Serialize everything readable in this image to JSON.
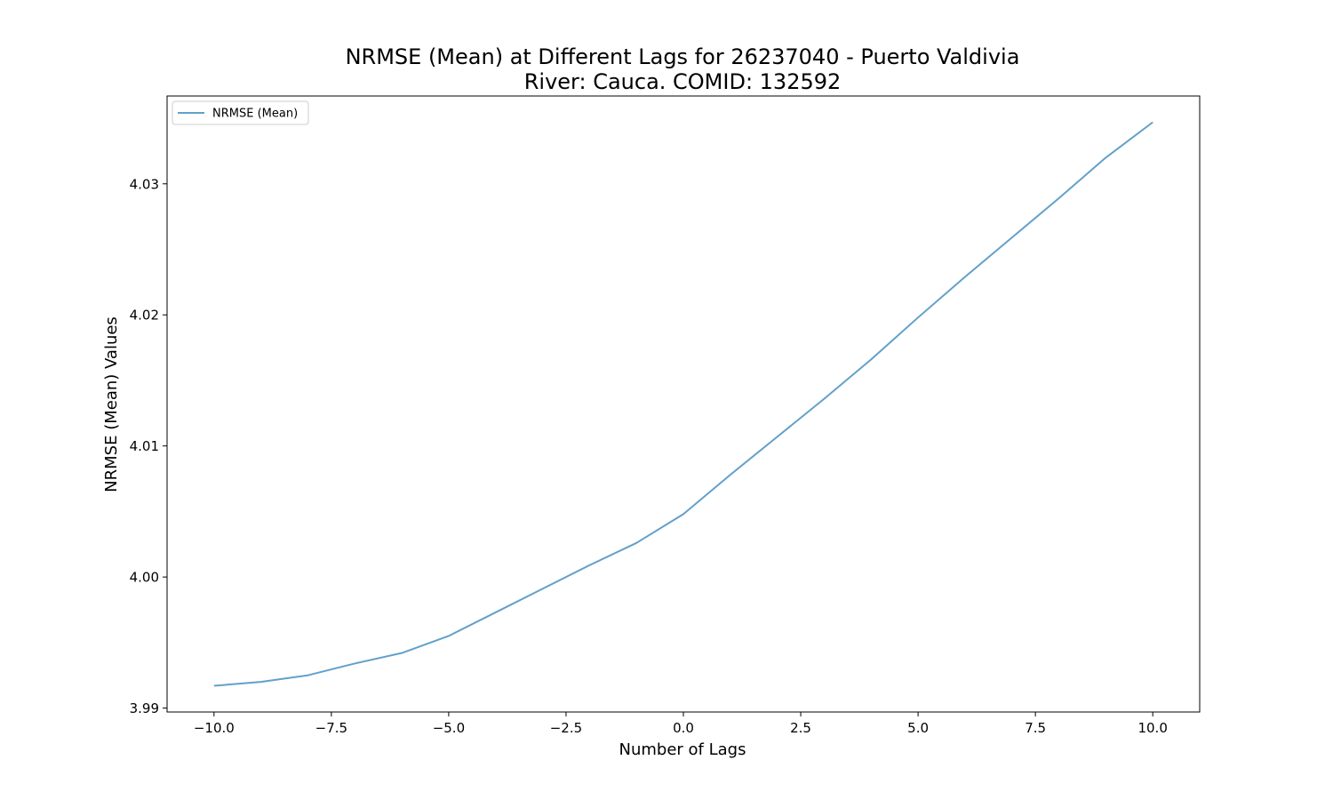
{
  "chart_data": {
    "type": "line",
    "title": "NRMSE (Mean) at Different Lags for 26237040 - Puerto Valdivia",
    "subtitle": "River: Cauca. COMID: 132592",
    "xlabel": "Number of Lags",
    "ylabel": "NRMSE (Mean) Values",
    "xlim": [
      -11,
      11
    ],
    "ylim": [
      3.9897,
      4.0367
    ],
    "x_ticks": [
      -10.0,
      -7.5,
      -5.0,
      -2.5,
      0.0,
      2.5,
      5.0,
      7.5,
      10.0
    ],
    "x_tick_labels": [
      "−10.0",
      "−7.5",
      "−5.0",
      "−2.5",
      "0.0",
      "2.5",
      "5.0",
      "7.5",
      "10.0"
    ],
    "y_ticks": [
      3.99,
      4.0,
      4.01,
      4.02,
      4.03
    ],
    "y_tick_labels": [
      "3.99",
      "4.00",
      "4.01",
      "4.02",
      "4.03"
    ],
    "grid": false,
    "legend_position": "top-left",
    "series": [
      {
        "name": "NRMSE (Mean)",
        "color": "#1f77b4",
        "x": [
          -10,
          -9,
          -8,
          -7,
          -6,
          -5,
          -4,
          -3,
          -2,
          -1,
          0,
          1,
          2,
          3,
          4,
          5,
          6,
          7,
          8,
          9,
          10
        ],
        "values": [
          3.9917,
          3.992,
          3.9925,
          3.9934,
          3.9942,
          3.9955,
          3.9973,
          3.9991,
          4.0009,
          4.0026,
          4.0048,
          4.0078,
          4.0107,
          4.0136,
          4.0166,
          4.0198,
          4.0229,
          4.0259,
          4.0289,
          4.032,
          4.0347
        ]
      }
    ]
  }
}
